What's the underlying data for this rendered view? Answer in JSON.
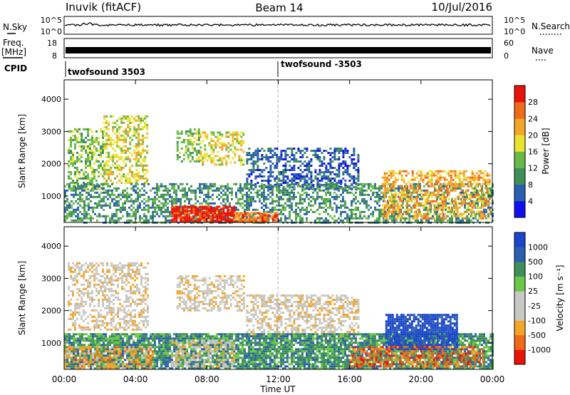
{
  "header": {
    "station": "Inuvik (fitACF)",
    "beam": "Beam 14",
    "date": "10/Jul/2016"
  },
  "top_panels": {
    "nsky_label": "N.Sky",
    "nsky_ticks": [
      "10^5",
      "10^0"
    ],
    "nsearch_label": "N.Search",
    "nsearch_ticks": [
      "10^5",
      "10^0"
    ],
    "freq_label": "Freq.",
    "freq_unit": "[MHz]",
    "freq_ticks": [
      "18",
      "8"
    ],
    "nave_label": "Nave",
    "nave_ticks": [
      "60",
      "0"
    ],
    "cpid_label": "CPID",
    "cpid_segments": [
      {
        "label": "twofsound 3503",
        "start_hour": 0
      },
      {
        "label": "twofsound -3503",
        "start_hour": 12
      }
    ]
  },
  "chart_data": [
    {
      "type": "heatmap",
      "name": "power",
      "ylabel": "Slant Range [km]",
      "y_ticks": [
        1000,
        2000,
        3000,
        4000
      ],
      "ylim": [
        180,
        4600
      ],
      "xlim_hours": [
        0,
        24
      ],
      "colorbar_label": "Power [dB]",
      "colorbar_ticks": [
        "4",
        "8",
        "12",
        "16",
        "20",
        "24",
        "28"
      ],
      "colors": [
        "#1010ee",
        "#2b5fb0",
        "#3f8f5a",
        "#69b948",
        "#e9e330",
        "#f4a62a",
        "#f06a19",
        "#e8140a"
      ],
      "regions": [
        {
          "x0": 0.2,
          "x1": 2.2,
          "y0": 1200,
          "y1": 3100,
          "level": 3
        },
        {
          "x0": 2.2,
          "x1": 4.7,
          "y0": 1400,
          "y1": 3500,
          "level": 4
        },
        {
          "x0": 6.3,
          "x1": 7.6,
          "y0": 2100,
          "y1": 3100,
          "level": 3
        },
        {
          "x0": 7.6,
          "x1": 10.1,
          "y0": 2000,
          "y1": 3000,
          "level": 4
        },
        {
          "x0": 10.2,
          "x1": 16.5,
          "y0": 1200,
          "y1": 2500,
          "level": 1
        },
        {
          "x0": 0.0,
          "x1": 24.0,
          "y0": 200,
          "y1": 1400,
          "level": 2
        },
        {
          "x0": 17.8,
          "x1": 23.8,
          "y0": 300,
          "y1": 1800,
          "level": 5
        },
        {
          "x0": 6.0,
          "x1": 9.5,
          "y0": 200,
          "y1": 700,
          "level": 7
        },
        {
          "x0": 9.5,
          "x1": 12.0,
          "y0": 200,
          "y1": 500,
          "level": 6
        }
      ]
    },
    {
      "type": "heatmap",
      "name": "velocity",
      "ylabel": "Slant Range [km]",
      "y_ticks": [
        1000,
        2000,
        3000,
        4000
      ],
      "ylim": [
        180,
        4600
      ],
      "xlim_hours": [
        0,
        24
      ],
      "xlabel": "Time UT",
      "x_ticks": [
        "00:00",
        "04:00",
        "08:00",
        "12:00",
        "16:00",
        "20:00",
        "00:00"
      ],
      "colorbar_label": "Velocity [m s⁻¹]",
      "colorbar_ticks": [
        "1000",
        "500",
        "100",
        "25",
        "-25",
        "-100",
        "-500",
        "-1000"
      ],
      "colors": [
        "#e8140a",
        "#f06a19",
        "#f4a62a",
        "#c8c8c4",
        "#c8c8c4",
        "#69c845",
        "#3f8f5a",
        "#2b5fb0",
        "#1a45cc"
      ],
      "regions": [
        {
          "x0": 0.2,
          "x1": 4.7,
          "y0": 1400,
          "y1": 3500,
          "level": 3
        },
        {
          "x0": 6.3,
          "x1": 10.1,
          "y0": 2000,
          "y1": 3100,
          "level": 3
        },
        {
          "x0": 10.2,
          "x1": 16.5,
          "y0": 1200,
          "y1": 2500,
          "level": 3
        },
        {
          "x0": 0.0,
          "x1": 24.0,
          "y0": 200,
          "y1": 1300,
          "level": 6
        },
        {
          "x0": 6.0,
          "x1": 9.5,
          "y0": 250,
          "y1": 1100,
          "level": 3
        },
        {
          "x0": 18.0,
          "x1": 22.0,
          "y0": 800,
          "y1": 1900,
          "level": 8
        },
        {
          "x0": 16.0,
          "x1": 23.5,
          "y0": 300,
          "y1": 900,
          "level": 1
        },
        {
          "x0": 0.0,
          "x1": 5.0,
          "y0": 200,
          "y1": 900,
          "level": 2
        }
      ]
    }
  ]
}
